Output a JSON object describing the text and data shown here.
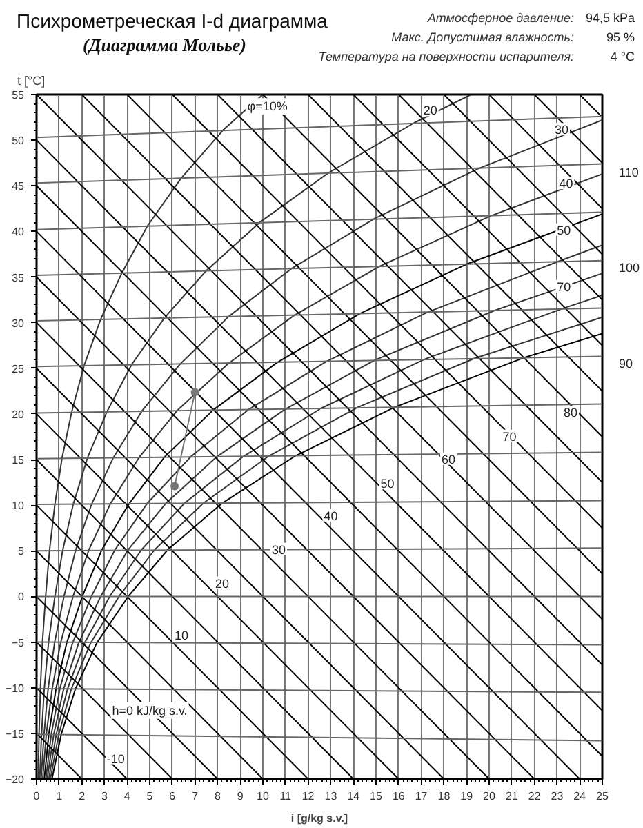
{
  "chart_data": {
    "type": "line",
    "title": "Психрометреческая I-d диаграмма",
    "subtitle": "(Диаграмма Мольье)",
    "xlabel": "i [g/kg s.v.]",
    "ylabel": "t [°C]",
    "xlim": [
      0,
      25
    ],
    "ylim": [
      -20,
      55
    ],
    "xticks": [
      0,
      1,
      2,
      3,
      4,
      5,
      6,
      7,
      8,
      9,
      10,
      11,
      12,
      13,
      14,
      15,
      16,
      17,
      18,
      19,
      20,
      21,
      22,
      23,
      24,
      25
    ],
    "yticks": [
      -20,
      -15,
      -10,
      -5,
      0,
      5,
      10,
      15,
      20,
      25,
      30,
      35,
      40,
      45,
      50,
      55
    ],
    "grid": "x",
    "series": [
      {
        "color": "#000000",
        "x": [
          0.68,
          1.09,
          1.72,
          2.66,
          4.05,
          5.79,
          8.19,
          11.43,
          15.79,
          21.58,
          25.0
        ],
        "values": [
          -20,
          -15.1,
          -10.1,
          -5.1,
          0,
          5.1,
          10.2,
          15.4,
          20.7,
          26.2,
          28.8
        ]
      },
      {
        "color": "#333333",
        "x": [
          0.61,
          0.98,
          1.54,
          2.39,
          3.64,
          5.21,
          7.36,
          10.27,
          14.17,
          19.36,
          25.0
        ],
        "values": [
          -20,
          -15.1,
          -10.1,
          -5.1,
          0,
          5.1,
          10.2,
          15.4,
          20.7,
          26.1,
          30.6
        ]
      },
      {
        "color": "#333333",
        "x": [
          0.54,
          0.87,
          1.37,
          2.12,
          3.23,
          4.63,
          6.53,
          9.11,
          12.56,
          17.15,
          23.19,
          25.0
        ],
        "values": [
          -20,
          -15.1,
          -10.1,
          -5.1,
          0,
          5.1,
          10.2,
          15.3,
          20.6,
          26.0,
          31.5,
          33.0
        ]
      },
      {
        "color": "#333333",
        "x": [
          0.47,
          0.76,
          1.2,
          1.86,
          2.83,
          4.04,
          5.71,
          7.96,
          10.97,
          14.95,
          20.2,
          25.0
        ],
        "values": [
          -20,
          -15.1,
          -10.1,
          -5.1,
          0,
          5.1,
          10.2,
          15.3,
          20.5,
          25.9,
          31.3,
          35.4
        ]
      },
      {
        "color": "#333333",
        "x": [
          0.41,
          0.65,
          1.03,
          1.59,
          2.42,
          3.46,
          4.89,
          6.81,
          9.38,
          12.77,
          17.23,
          23.05,
          25.0
        ],
        "values": [
          -20,
          -15.1,
          -10.1,
          -5.1,
          0,
          5.1,
          10.2,
          15.3,
          20.5,
          25.7,
          31.1,
          36.7,
          38.5
        ]
      },
      {
        "color": "#000000",
        "x": [
          0.34,
          0.54,
          0.86,
          1.33,
          2.02,
          2.88,
          4.07,
          5.66,
          7.79,
          10.61,
          14.29,
          19.09,
          25.0
        ],
        "values": [
          -20,
          -15.1,
          -10.1,
          -5.1,
          0,
          5.1,
          10.1,
          15.3,
          20.4,
          25.6,
          31.0,
          36.5,
          41.9
        ]
      },
      {
        "color": "#333333",
        "x": [
          0.27,
          0.43,
          0.69,
          1.06,
          1.61,
          2.31,
          3.25,
          4.52,
          6.22,
          8.46,
          11.38,
          15.18,
          20.07,
          25.0
        ],
        "values": [
          -20,
          -15.1,
          -10.1,
          -5.1,
          0,
          5.1,
          10.1,
          15.2,
          20.4,
          25.5,
          30.8,
          36.2,
          41.7,
          46.3
        ]
      },
      {
        "color": "#333333",
        "x": [
          0.2,
          0.33,
          0.51,
          0.8,
          1.21,
          1.73,
          2.43,
          3.39,
          4.65,
          6.32,
          8.5,
          11.31,
          14.93,
          19.54,
          25.0
        ],
        "values": [
          -20,
          -15.1,
          -10.1,
          -5.0,
          0,
          5.1,
          10.1,
          15.2,
          20.3,
          25.4,
          30.7,
          36.0,
          41.4,
          46.9,
          52.2
        ]
      },
      {
        "color": "#333333",
        "x": [
          0.14,
          0.22,
          0.34,
          0.53,
          0.81,
          1.15,
          1.62,
          2.25,
          3.1,
          4.2,
          5.64,
          7.5,
          9.87,
          12.89,
          16.69,
          19.2
        ],
        "values": [
          -20,
          -15.1,
          -10.1,
          -5.0,
          0,
          5.0,
          10.1,
          15.2,
          20.2,
          25.4,
          30.5,
          35.7,
          41.0,
          46.4,
          51.9,
          55
        ]
      },
      {
        "color": "#333333",
        "x": [
          0.07,
          0.11,
          0.17,
          0.26,
          0.4,
          0.57,
          0.81,
          1.12,
          1.55,
          2.1,
          2.82,
          3.74,
          4.9,
          6.38,
          8.24,
          10.0
        ],
        "values": [
          -20,
          -15.1,
          -10.1,
          -5.0,
          0,
          5.0,
          10.1,
          15.1,
          20.2,
          25.3,
          30.3,
          35.3,
          40.6,
          45.8,
          51.1,
          55
        ]
      },
      {
        "color": "#000000",
        "x": [
          0,
          2.0
        ],
        "values": [
          -15,
          -20
        ]
      },
      {
        "color": "#000000",
        "x": [
          0,
          4.0
        ],
        "values": [
          -10,
          -20
        ]
      },
      {
        "color": "#000000",
        "x": [
          0,
          6.0
        ],
        "values": [
          -5,
          -20
        ]
      },
      {
        "color": "#000000",
        "x": [
          0,
          8.0
        ],
        "values": [
          0,
          -20
        ]
      },
      {
        "color": "#000000",
        "x": [
          0,
          10.0
        ],
        "values": [
          5,
          -20
        ]
      },
      {
        "color": "#000000",
        "x": [
          0,
          12.0
        ],
        "values": [
          10,
          -20
        ]
      },
      {
        "color": "#000000",
        "x": [
          0,
          14.0
        ],
        "values": [
          15,
          -20
        ]
      },
      {
        "color": "#000000",
        "x": [
          0,
          16.0
        ],
        "values": [
          20,
          -20
        ]
      },
      {
        "color": "#000000",
        "x": [
          0,
          18.0
        ],
        "values": [
          25,
          -20
        ]
      },
      {
        "color": "#000000",
        "x": [
          0,
          20.0
        ],
        "values": [
          30,
          -20
        ]
      },
      {
        "color": "#000000",
        "x": [
          0,
          22.0
        ],
        "values": [
          35,
          -20
        ]
      },
      {
        "color": "#000000",
        "x": [
          0,
          24.0
        ],
        "values": [
          40,
          -20
        ]
      },
      {
        "color": "#000000",
        "x": [
          0,
          25
        ],
        "values": [
          45,
          -17.5
        ]
      },
      {
        "color": "#000000",
        "x": [
          0,
          25
        ],
        "values": [
          50,
          -12.5
        ]
      },
      {
        "color": "#000000",
        "x": [
          0,
          25
        ],
        "values": [
          55,
          -7.5
        ]
      },
      {
        "color": "#000000",
        "x": [
          2.0,
          25
        ],
        "values": [
          55,
          -2.5
        ]
      },
      {
        "color": "#000000",
        "x": [
          4.0,
          25
        ],
        "values": [
          55,
          2.5
        ]
      },
      {
        "color": "#000000",
        "x": [
          6.0,
          25
        ],
        "values": [
          55,
          7.5
        ]
      },
      {
        "color": "#000000",
        "x": [
          8.0,
          25
        ],
        "values": [
          55,
          12.5
        ]
      },
      {
        "color": "#000000",
        "x": [
          10.0,
          25
        ],
        "values": [
          55,
          17.5
        ]
      },
      {
        "color": "#000000",
        "x": [
          12.0,
          25
        ],
        "values": [
          55,
          22.5
        ]
      },
      {
        "color": "#000000",
        "x": [
          14.0,
          25
        ],
        "values": [
          55,
          27.5
        ]
      },
      {
        "color": "#000000",
        "x": [
          16.0,
          25
        ],
        "values": [
          55,
          32.5
        ]
      },
      {
        "color": "#000000",
        "x": [
          18.0,
          25
        ],
        "values": [
          55,
          37.5
        ]
      },
      {
        "color": "#000000",
        "x": [
          20.0,
          25
        ],
        "values": [
          55,
          42.5
        ]
      },
      {
        "color": "#000000",
        "x": [
          22.0,
          25
        ],
        "values": [
          55,
          47.5
        ]
      },
      {
        "color": "#000000",
        "x": [
          24.0,
          25
        ],
        "values": [
          55,
          52.5
        ]
      },
      {
        "color": "#666666",
        "x": [
          0,
          25
        ],
        "values": [
          -15.1,
          -15.8
        ]
      },
      {
        "color": "#666666",
        "x": [
          0,
          25
        ],
        "values": [
          -10.1,
          -10.5
        ]
      },
      {
        "color": "#666666",
        "x": [
          0,
          25
        ],
        "values": [
          -5.0,
          -5.3
        ]
      },
      {
        "color": "#666666",
        "x": [
          0,
          25
        ],
        "values": [
          0,
          0
        ]
      },
      {
        "color": "#666666",
        "x": [
          0,
          25
        ],
        "values": [
          5.0,
          5.3
        ]
      },
      {
        "color": "#666666",
        "x": [
          0,
          25
        ],
        "values": [
          10.1,
          10.5
        ]
      },
      {
        "color": "#666666",
        "x": [
          0,
          25
        ],
        "values": [
          15.1,
          15.8
        ]
      },
      {
        "color": "#666666",
        "x": [
          0,
          25
        ],
        "values": [
          20.1,
          21.1
        ]
      },
      {
        "color": "#666666",
        "x": [
          0,
          25
        ],
        "values": [
          25.2,
          26.3
        ]
      },
      {
        "color": "#666666",
        "x": [
          0,
          25
        ],
        "values": [
          30.2,
          31.6
        ]
      },
      {
        "color": "#666666",
        "x": [
          0,
          25
        ],
        "values": [
          35.2,
          36.8
        ]
      },
      {
        "color": "#666666",
        "x": [
          0,
          25
        ],
        "values": [
          40.2,
          42.1
        ]
      },
      {
        "color": "#666666",
        "x": [
          0,
          25
        ],
        "values": [
          45.3,
          47.4
        ]
      },
      {
        "color": "#666666",
        "x": [
          0,
          25
        ],
        "values": [
          50.3,
          52.6
        ]
      },
      {
        "color": "#777777",
        "marker": "circle",
        "x": [
          6.1,
          7.0
        ],
        "values": [
          12.1,
          22.4
        ]
      }
    ],
    "annotations": [
      "Атмосферное давление:",
      "94,5 kPa",
      "Макс. Допустимая влажность:",
      "95 %",
      "Температура на поверхности испарителя:",
      "4 °C",
      {
        "text": "φ=10%",
        "x": 10.2,
        "y": 53.7
      },
      {
        "text": "20",
        "x": 17.4,
        "y": 53.3
      },
      {
        "text": "30",
        "x": 23.2,
        "y": 51.2
      },
      {
        "text": "40",
        "x": 23.4,
        "y": 45.3
      },
      {
        "text": "50",
        "x": 23.3,
        "y": 40.2
      },
      {
        "text": "70",
        "x": 23.3,
        "y": 34.0
      },
      {
        "text": "-10",
        "x": 3.5,
        "y": -17.7
      },
      {
        "text": "h=0 kJ/kg s.v.",
        "x": 5.0,
        "y": -12.5
      },
      {
        "text": "10",
        "x": 6.4,
        "y": -4.2
      },
      {
        "text": "20",
        "x": 8.2,
        "y": 1.5
      },
      {
        "text": "30",
        "x": 10.7,
        "y": 5.2
      },
      {
        "text": "40",
        "x": 13.0,
        "y": 8.9
      },
      {
        "text": "50",
        "x": 15.5,
        "y": 12.4
      },
      {
        "text": "60",
        "x": 18.2,
        "y": 15.1
      },
      {
        "text": "70",
        "x": 20.9,
        "y": 17.6
      },
      {
        "text": "80",
        "x": 23.6,
        "y": 20.2
      },
      {
        "text": "90",
        "x": 25,
        "y": 25.6
      },
      {
        "text": "100",
        "x": 25,
        "y": 36.1
      },
      {
        "text": "110",
        "x": 25,
        "y": 46.5
      }
    ]
  }
}
